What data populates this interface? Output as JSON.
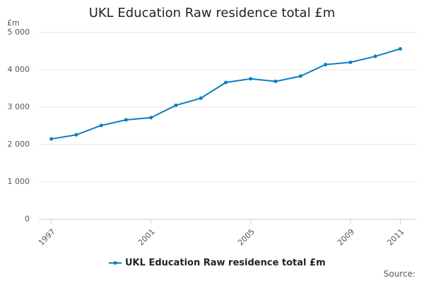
{
  "chart_data": {
    "type": "line",
    "title": "UKL Education Raw residence total £m",
    "y_label": "£m",
    "source": "Source:",
    "x": [
      1997,
      1998,
      1999,
      2000,
      2001,
      2002,
      2003,
      2004,
      2005,
      2006,
      2007,
      2008,
      2009,
      2010,
      2011
    ],
    "xlim": [
      1996.5,
      2011.5
    ],
    "xticks": [
      1997,
      2001,
      2005,
      2009,
      2011
    ],
    "ylim": [
      0,
      5000
    ],
    "yticks": [
      0,
      {
        "value": 1000,
        "label": "1 000"
      },
      {
        "value": 2000,
        "label": "2 000"
      },
      {
        "value": 3000,
        "label": "3 000"
      },
      {
        "value": 4000,
        "label": "4 000"
      },
      {
        "value": 5000,
        "label": "5 000"
      }
    ],
    "grid": true,
    "series": [
      {
        "name": "UKL Education Raw residence total £m",
        "color": "#0b7ec1",
        "values": [
          2150,
          2260,
          2510,
          2660,
          2720,
          3050,
          3240,
          3660,
          3760,
          3690,
          3830,
          4140,
          4200,
          4360,
          4560
        ]
      }
    ]
  }
}
